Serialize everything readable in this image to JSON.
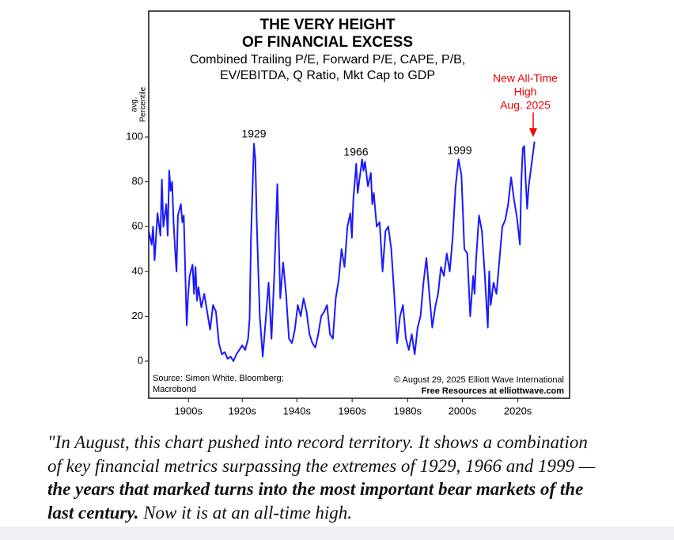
{
  "chart_data": {
    "type": "line",
    "title": [
      "THE VERY HEIGHT",
      "OF FINANCIAL EXCESS"
    ],
    "subtitle": [
      "Combined Trailing P/E, Forward P/E, CAPE, P/B,",
      "EV/EBITDA, Q Ratio, Mkt Cap to GDP"
    ],
    "y_label": [
      "avg.",
      "Percentile"
    ],
    "annotations": [
      "1929",
      "1966",
      "1999"
    ],
    "highlight": [
      "New All-Time",
      "High",
      "Aug. 2025"
    ],
    "source": [
      "Source: Simon White, Bloomberg;",
      "Macrobond"
    ],
    "credit": [
      "© August 29, 2025  Elliott Wave International",
      "Free Resources at elliottwave.com"
    ],
    "xlim": [
      1893,
      2037
    ],
    "xticks": [
      {
        "value": 1906.6,
        "label": "1900s"
      },
      {
        "value": 1925,
        "label": "1920s"
      },
      {
        "value": 1943.7,
        "label": "1940s"
      },
      {
        "value": 1962.6,
        "label": "1960s"
      },
      {
        "value": 1981.6,
        "label": "1980s"
      },
      {
        "value": 2000.3,
        "label": "2000s"
      },
      {
        "value": 2019.3,
        "label": "2020s"
      }
    ],
    "ylim": [
      -16.6,
      156.2
    ],
    "yticks": [
      0,
      20,
      40,
      60,
      80,
      100
    ],
    "series": [
      {
        "color": "#1a1aff",
        "x": [
          1893,
          1894,
          1894.5,
          1895,
          1896,
          1897,
          1897.5,
          1898,
          1899,
          1899.5,
          1900,
          1900.5,
          1901,
          1901.5,
          1902,
          1902.5,
          1903,
          1904,
          1904.5,
          1905,
          1906,
          1906.5,
          1907,
          1908,
          1908.5,
          1909,
          1909.5,
          1910,
          1911,
          1912,
          1913,
          1914,
          1915,
          1916,
          1917,
          1918,
          1919,
          1920,
          1921,
          1922,
          1923,
          1924,
          1925,
          1926,
          1927,
          1927.5,
          1928,
          1929,
          1929.5,
          1930,
          1931,
          1932,
          1933,
          1934,
          1935,
          1936,
          1937,
          1937.5,
          1938,
          1939,
          1940,
          1941,
          1942,
          1943,
          1944,
          1945,
          1946,
          1947,
          1948,
          1949,
          1950,
          1951,
          1952,
          1953,
          1954,
          1955,
          1956,
          1957,
          1958,
          1959,
          1960,
          1961,
          1962,
          1962.5,
          1963,
          1964,
          1964.5,
          1965,
          1966,
          1966.5,
          1967,
          1968,
          1969,
          1969.5,
          1970,
          1971,
          1972,
          1973,
          1974,
          1975,
          1976,
          1977,
          1978,
          1979,
          1980,
          1981,
          1982,
          1983,
          1984,
          1985,
          1986,
          1987,
          1988,
          1989,
          1990,
          1991,
          1992,
          1993,
          1994,
          1995,
          1996,
          1997,
          1998,
          1999,
          2000,
          2001,
          2002,
          2003,
          2004,
          2004.5,
          2005,
          2006,
          2007,
          2008,
          2009,
          2009.5,
          2010,
          2011,
          2012,
          2013,
          2014,
          2015,
          2016,
          2017,
          2018,
          2019,
          2020,
          2020.5,
          2021,
          2021.5,
          2022,
          2022.5,
          2023,
          2024,
          2025
        ],
        "values": [
          58,
          52,
          60,
          45,
          66,
          56,
          81,
          60,
          70,
          56,
          85,
          76,
          80,
          62,
          50,
          40,
          65,
          70,
          62,
          65,
          16,
          30,
          38,
          43,
          30,
          42,
          27,
          33,
          24,
          30,
          22,
          14,
          25,
          22,
          8,
          3,
          4,
          1,
          2,
          0,
          3,
          5,
          7,
          5,
          10,
          19,
          55,
          97,
          90,
          60,
          20,
          2,
          18,
          35,
          10,
          40,
          79,
          55,
          28,
          44,
          30,
          10,
          8,
          14,
          25,
          20,
          28,
          22,
          12,
          8,
          6,
          12,
          20,
          22,
          25,
          12,
          10,
          28,
          36,
          50,
          42,
          60,
          66,
          55,
          72,
          88,
          75,
          80,
          90,
          85,
          89,
          78,
          84,
          70,
          75,
          60,
          62,
          40,
          58,
          60,
          50,
          30,
          8,
          20,
          25,
          10,
          5,
          12,
          3,
          15,
          20,
          35,
          46,
          30,
          15,
          24,
          30,
          42,
          38,
          48,
          40,
          55,
          78,
          90,
          83,
          50,
          48,
          20,
          38,
          30,
          45,
          65,
          58,
          38,
          15,
          40,
          25,
          35,
          30,
          45,
          60,
          63,
          70,
          82,
          72,
          64,
          52,
          80,
          95,
          96,
          80,
          68,
          78,
          88,
          98
        ]
      }
    ]
  },
  "caption": {
    "lines": [
      "\"In August, this chart pushed into record territory. It shows a combination",
      "of key financial metrics surpassing the extremes of 1929, 1966 and 1999 —",
      "the years that marked turns into the most important bear markets of the"
    ],
    "bold_end": "last century.",
    "tail": " Now it is at an all-time high."
  }
}
